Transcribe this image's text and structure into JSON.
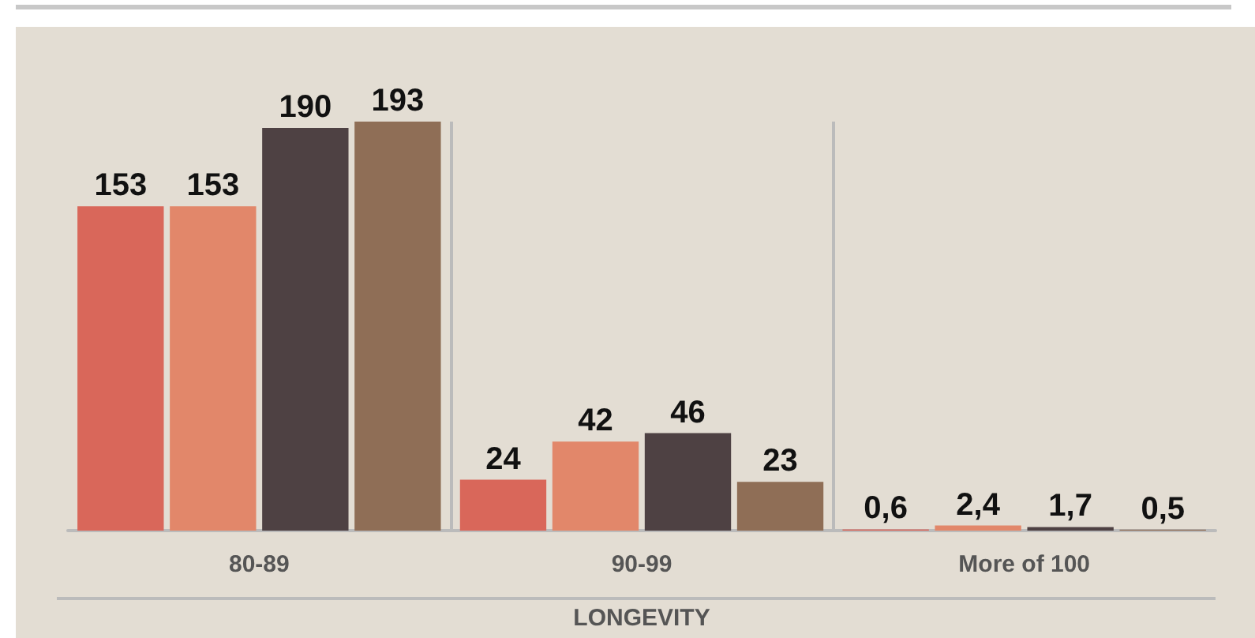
{
  "chart_data": {
    "type": "bar",
    "xlabel": "LONGEVITY",
    "categories": [
      "80-89",
      "90-99",
      "More of 100"
    ],
    "series": [
      {
        "color": "#d9675a",
        "values": [
          153,
          24,
          0.6
        ],
        "value_labels": [
          "153",
          "24",
          "0,6"
        ]
      },
      {
        "color": "#e2876a",
        "values": [
          153,
          42,
          2.4
        ],
        "value_labels": [
          "153",
          "42",
          "2,4"
        ]
      },
      {
        "color": "#4e4143",
        "values": [
          190,
          46,
          1.7
        ],
        "value_labels": [
          "190",
          "46",
          "1,7"
        ]
      },
      {
        "color": "#8f6e56",
        "values": [
          193,
          23,
          0.5
        ],
        "value_labels": [
          "193",
          "23",
          "0,5"
        ]
      }
    ],
    "grid": "x"
  }
}
